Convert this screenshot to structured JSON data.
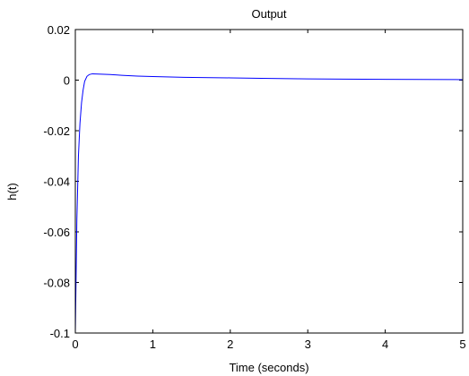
{
  "chart_data": {
    "type": "line",
    "title": "Output",
    "xlabel": "Time (seconds)",
    "ylabel": "h(t)",
    "xlim": [
      0,
      5
    ],
    "ylim": [
      -0.1,
      0.02
    ],
    "xticks": [
      0,
      1,
      2,
      3,
      4,
      5
    ],
    "xtick_labels": [
      "0",
      "1",
      "2",
      "3",
      "4",
      "5"
    ],
    "yticks": [
      0.02,
      0,
      -0.02,
      -0.04,
      -0.06,
      -0.08,
      -0.1
    ],
    "ytick_labels": [
      "0.02",
      "0",
      "-0.02",
      "-0.04",
      "-0.06",
      "-0.08",
      "-0.1"
    ],
    "grid": false,
    "series": [
      {
        "color": "#0000ff",
        "x": [
          0,
          0.02,
          0.04,
          0.06,
          0.08,
          0.1,
          0.12,
          0.15,
          0.18,
          0.22,
          0.3,
          0.45,
          0.6,
          0.8,
          1.0,
          1.4,
          2.0,
          2.4,
          3.0,
          4.0,
          5.0
        ],
        "y": [
          -0.1,
          -0.055,
          -0.03,
          -0.017,
          -0.009,
          -0.004,
          -0.0005,
          0.0015,
          0.0022,
          0.0025,
          0.0024,
          0.0022,
          0.0019,
          0.0016,
          0.0014,
          0.0011,
          0.0009,
          0.0007,
          0.0005,
          0.0003,
          0.0002
        ]
      }
    ]
  }
}
